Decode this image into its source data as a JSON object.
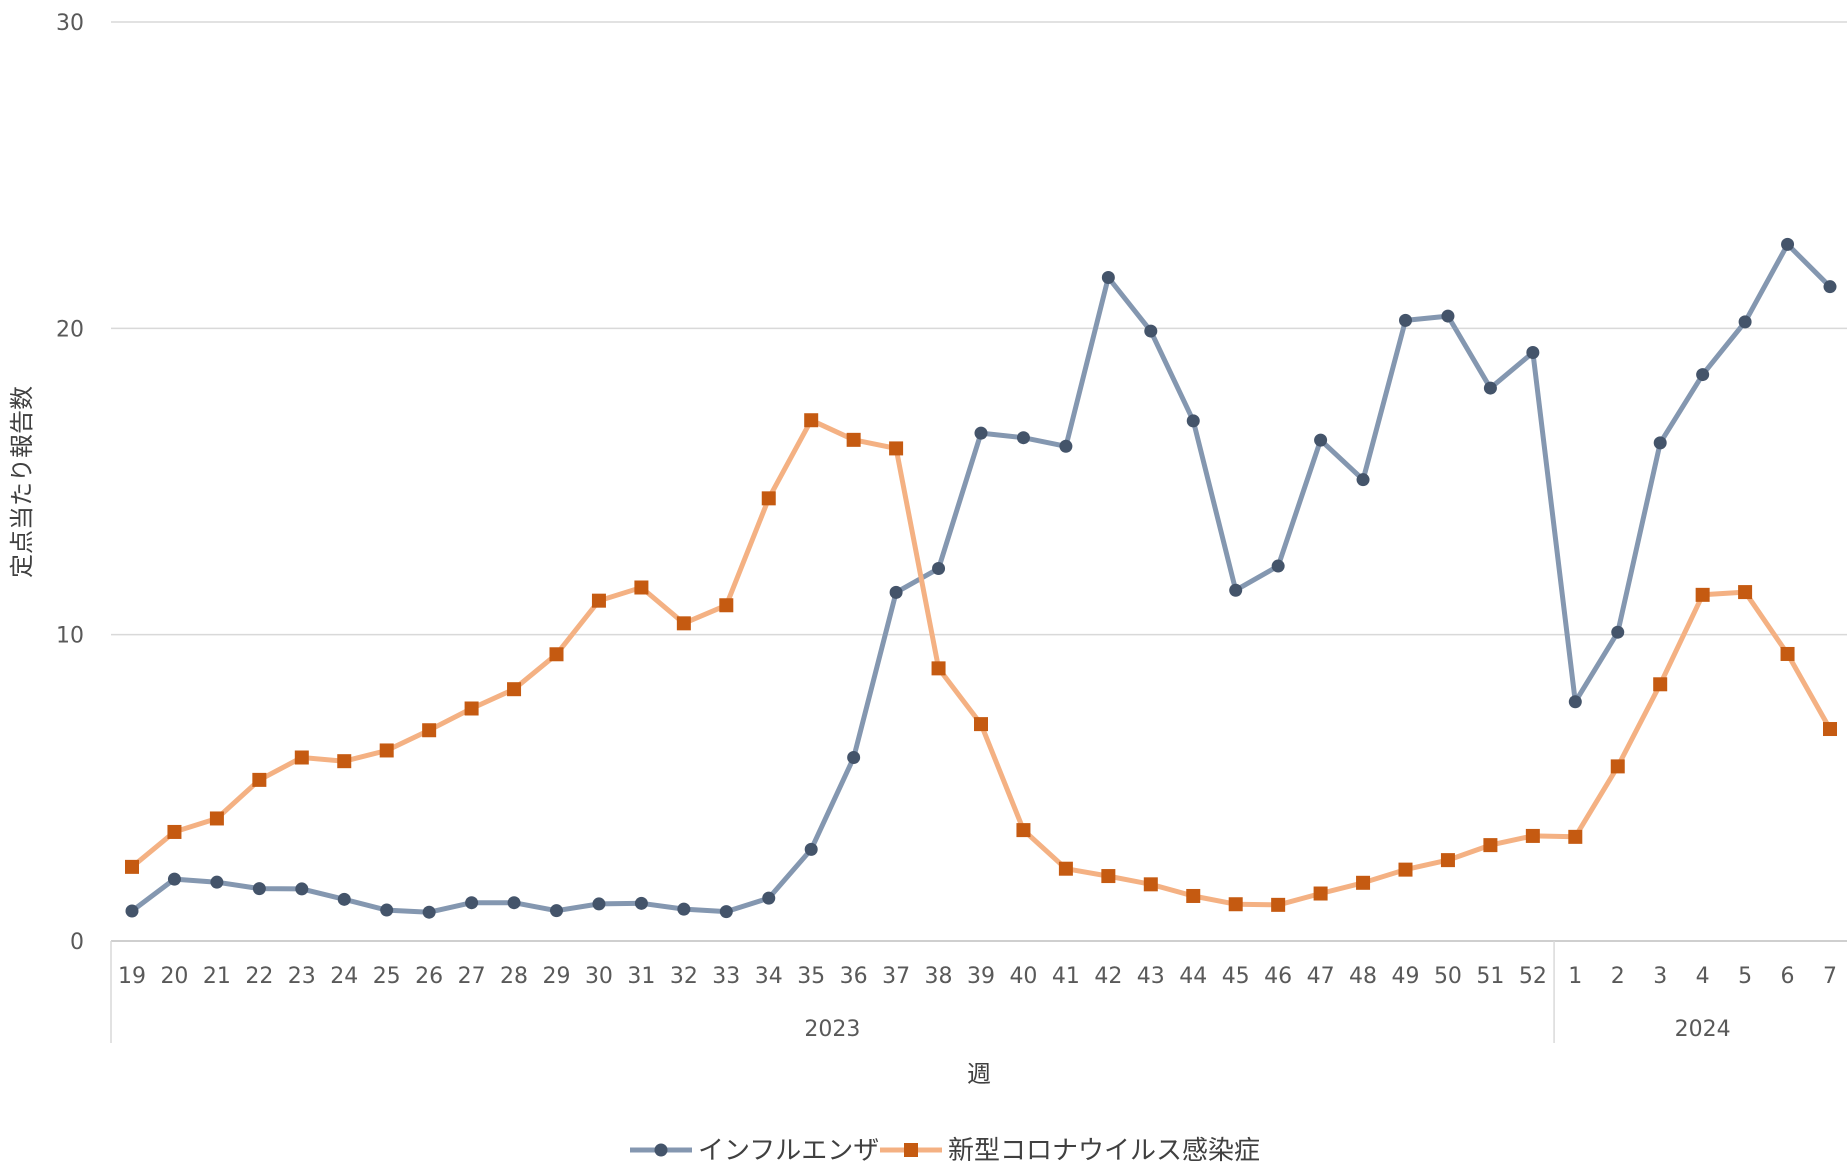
{
  "chart_data": {
    "type": "line",
    "title": "",
    "xlabel": "週",
    "ylabel": "定点当たり報告数",
    "ylim": [
      0,
      30
    ],
    "yticks": [
      0,
      10,
      20,
      30
    ],
    "grid": true,
    "legend_position": "bottom",
    "categories": [
      "19",
      "20",
      "21",
      "22",
      "23",
      "24",
      "25",
      "26",
      "27",
      "28",
      "29",
      "30",
      "31",
      "32",
      "33",
      "34",
      "35",
      "36",
      "37",
      "38",
      "39",
      "40",
      "41",
      "42",
      "43",
      "44",
      "45",
      "46",
      "47",
      "48",
      "49",
      "50",
      "51",
      "52",
      "1",
      "2",
      "3",
      "4",
      "5",
      "6",
      "7"
    ],
    "groups": [
      {
        "label": "2023",
        "start": 0,
        "end": 33
      },
      {
        "label": "2024",
        "start": 34,
        "end": 40
      }
    ],
    "series": [
      {
        "name": "インフルエンザ",
        "color": "#8497b0",
        "marker_color": "#44546a",
        "marker": "circle",
        "values": [
          0.98,
          2.02,
          1.92,
          1.71,
          1.7,
          1.36,
          1.01,
          0.94,
          1.25,
          1.25,
          0.99,
          1.21,
          1.23,
          1.04,
          0.96,
          1.4,
          2.99,
          5.99,
          11.38,
          12.16,
          16.58,
          16.43,
          16.15,
          21.66,
          19.91,
          16.98,
          11.45,
          12.24,
          16.35,
          15.06,
          20.26,
          20.4,
          18.05,
          19.21,
          7.81,
          10.08,
          16.26,
          18.49,
          20.21,
          22.74,
          21.36
        ]
      },
      {
        "name": "新型コロナウイルス感染症",
        "color": "#f4b183",
        "marker_color": "#c55a11",
        "marker": "square",
        "values": [
          2.42,
          3.56,
          4.0,
          5.26,
          5.99,
          5.87,
          6.22,
          6.88,
          7.59,
          8.22,
          9.36,
          11.11,
          11.54,
          10.37,
          10.96,
          14.45,
          17.0,
          16.36,
          16.08,
          8.9,
          7.08,
          3.62,
          2.36,
          2.12,
          1.85,
          1.47,
          1.2,
          1.18,
          1.55,
          1.9,
          2.33,
          2.64,
          3.13,
          3.43,
          3.4,
          5.7,
          8.38,
          11.3,
          11.39,
          9.37,
          6.92
        ]
      }
    ]
  }
}
